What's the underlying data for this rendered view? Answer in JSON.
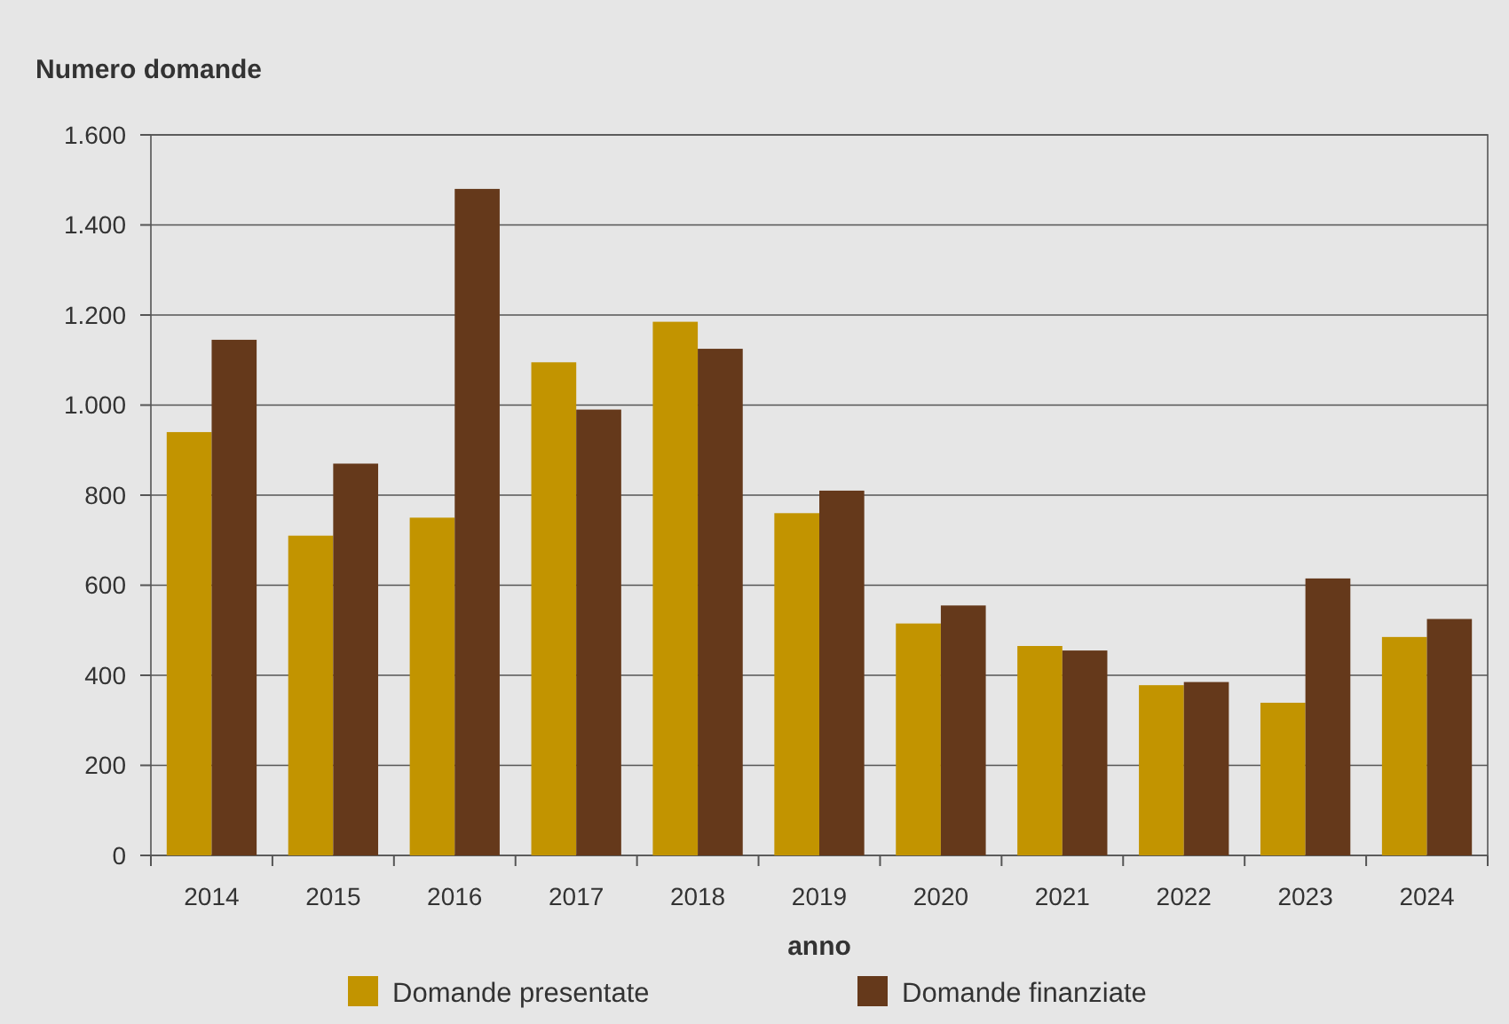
{
  "chart_data": {
    "type": "bar",
    "ylabel": "Numero domande",
    "xlabel": "anno",
    "categories": [
      "2014",
      "2015",
      "2016",
      "2017",
      "2018",
      "2019",
      "2020",
      "2021",
      "2022",
      "2023",
      "2024"
    ],
    "series": [
      {
        "name": "Domande presentate",
        "color": "#c29400",
        "values": [
          940,
          710,
          750,
          1095,
          1185,
          760,
          515,
          465,
          378,
          339,
          485
        ]
      },
      {
        "name": "Domande finanziate",
        "color": "#65391b",
        "values": [
          1145,
          870,
          1480,
          990,
          1125,
          810,
          555,
          455,
          385,
          615,
          525
        ]
      }
    ],
    "ylim": [
      0,
      1600
    ],
    "yticks": [
      0,
      200,
      400,
      600,
      800,
      {
        "value": 1000,
        "label": "1.000"
      },
      {
        "value": 1200,
        "label": "1.200"
      },
      {
        "value": 1400,
        "label": "1.400"
      },
      {
        "value": 1600,
        "label": "1.600"
      }
    ],
    "grid": "y",
    "legend": "bottom"
  }
}
